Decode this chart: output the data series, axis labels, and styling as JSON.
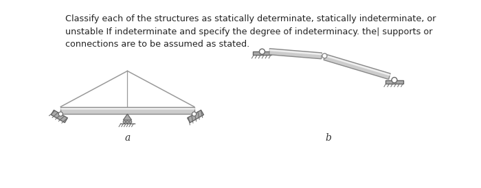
{
  "title_text": "Classify each of the structures as statically determinate, statically indeterminate, or\nunstable If indeterminate and specify the degree of indeterminacy. the| supports or\nconnections are to be assumed as stated.",
  "title_fontsize": 9.2,
  "bg_color": "#ffffff",
  "label_a": "a",
  "label_b": "b",
  "beam_color": "#cccccc",
  "beam_edge_color": "#888888",
  "beam_highlight": "#eeeeee",
  "line_color": "#999999",
  "support_color": "#aaaaaa",
  "support_edge": "#666666"
}
